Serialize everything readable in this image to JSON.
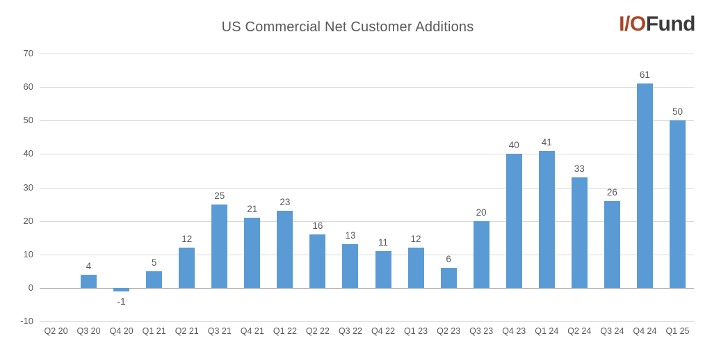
{
  "page": {
    "background": "#ffffff"
  },
  "logo": {
    "io": "I/O",
    "fund": "Fund",
    "io_color": "#a94724",
    "fund_color": "#3a3a3a"
  },
  "chart_data": {
    "type": "bar",
    "title": "US Commercial Net Customer Additions",
    "categories": [
      "Q2 20",
      "Q3 20",
      "Q4 20",
      "Q1 21",
      "Q2 21",
      "Q3 21",
      "Q4 21",
      "Q1 22",
      "Q2 22",
      "Q3 22",
      "Q4 22",
      "Q1 23",
      "Q2 23",
      "Q3 23",
      "Q4 23",
      "Q1 24",
      "Q2 24",
      "Q3 24",
      "Q4 24",
      "Q1 25"
    ],
    "values": [
      0,
      4,
      -1,
      5,
      12,
      25,
      21,
      23,
      16,
      13,
      11,
      12,
      6,
      20,
      40,
      41,
      33,
      26,
      61,
      50
    ],
    "bar_labels": [
      "",
      "4",
      "-1",
      "5",
      "12",
      "25",
      "21",
      "23",
      "16",
      "13",
      "11",
      "12",
      "6",
      "20",
      "40",
      "41",
      "33",
      "26",
      "61",
      "50"
    ],
    "ylim": [
      -10,
      70
    ],
    "yticks": [
      -10,
      0,
      10,
      20,
      30,
      40,
      50,
      60,
      70
    ],
    "bar_color": "#5b9bd5",
    "grid": true,
    "legend_position": "none"
  }
}
